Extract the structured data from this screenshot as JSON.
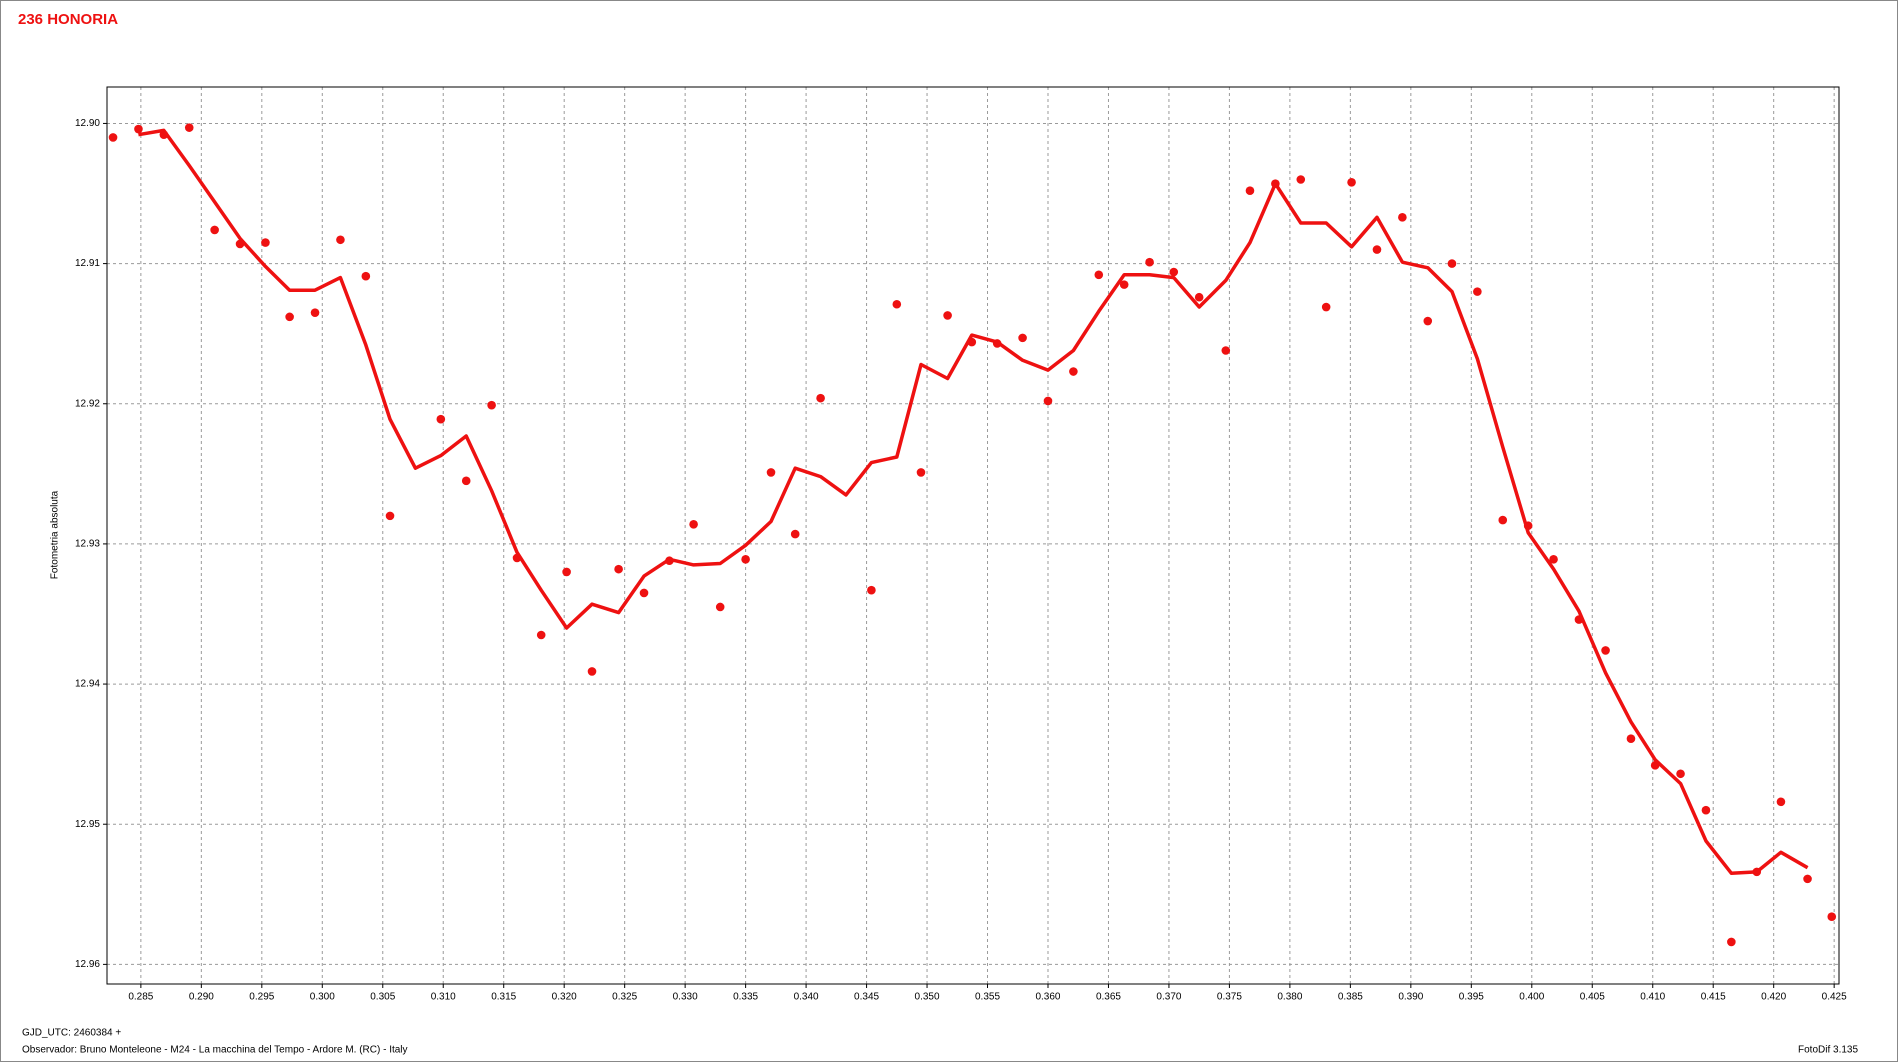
{
  "chart_data": {
    "type": "scatter",
    "title": "236 HONORIA",
    "y_label": "Fotometria absoluta",
    "footer_left": [
      "GJD_UTC: 2460384 +",
      "Observador: Bruno Monteleone - M24 - La macchina del Tempo - Ardore M. (RC) - Italy"
    ],
    "footer_right": "FotoDif 3.135",
    "xlim": [
      0.2822,
      0.4254
    ],
    "ylim": [
      12.8974,
      12.9614
    ],
    "y_inverted": true,
    "grid": true,
    "xticks": [
      0.285,
      {
        "value": 0.29,
        "label": "0.290"
      },
      0.295,
      {
        "value": 0.3,
        "label": "0.300"
      },
      0.305,
      {
        "value": 0.31,
        "label": "0.310"
      },
      0.315,
      {
        "value": 0.32,
        "label": "0.320"
      },
      0.325,
      {
        "value": 0.33,
        "label": "0.330"
      },
      0.335,
      {
        "value": 0.34,
        "label": "0.340"
      },
      0.345,
      {
        "value": 0.35,
        "label": "0.350"
      },
      0.355,
      {
        "value": 0.36,
        "label": "0.360"
      },
      0.365,
      {
        "value": 0.37,
        "label": "0.370"
      },
      0.375,
      {
        "value": 0.38,
        "label": "0.380"
      },
      0.385,
      {
        "value": 0.39,
        "label": "0.390"
      },
      0.395,
      {
        "value": 0.4,
        "label": "0.400"
      },
      0.405,
      {
        "value": 0.41,
        "label": "0.410"
      },
      0.415,
      {
        "value": 0.42,
        "label": "0.420"
      },
      0.425
    ],
    "yticks": [
      {
        "value": 12.9,
        "label": "12.90"
      },
      12.91,
      12.92,
      12.93,
      12.94,
      12.95,
      12.96
    ],
    "series": [
      {
        "style": "markers",
        "color": "#ee1111",
        "x": [
          0.2827,
          0.2848,
          0.2869,
          0.289,
          0.2911,
          0.2932,
          0.2953,
          0.2973,
          0.2994,
          0.3015,
          0.3036,
          0.3056,
          0.3098,
          0.3119,
          0.314,
          0.3161,
          0.3181,
          0.3202,
          0.3223,
          0.3245,
          0.3266,
          0.3287,
          0.3307,
          0.3329,
          0.335,
          0.3371,
          0.3391,
          0.3412,
          0.3454,
          0.3475,
          0.3495,
          0.3517,
          0.3537,
          0.3558,
          0.3579,
          0.36,
          0.3621,
          0.3642,
          0.3663,
          0.3684,
          0.3704,
          0.3725,
          0.3747,
          0.3767,
          0.3788,
          0.3809,
          0.383,
          0.3851,
          0.3872,
          0.3893,
          0.3914,
          0.3934,
          0.3955,
          0.3976,
          0.3997,
          0.4018,
          0.4039,
          0.4061,
          0.4082,
          0.4102,
          0.4123,
          0.4144,
          0.4165,
          0.4186,
          0.4206,
          0.4228,
          0.4248
        ],
        "values": [
          12.901,
          12.9004,
          12.9008,
          12.9003,
          12.9076,
          12.9086,
          12.9085,
          12.9138,
          12.9135,
          12.9083,
          12.9109,
          12.928,
          12.9211,
          12.9255,
          12.9201,
          12.931,
          12.9365,
          12.932,
          12.9391,
          12.9318,
          12.9335,
          12.9312,
          12.9286,
          12.9345,
          12.9311,
          12.9249,
          12.9293,
          12.9196,
          12.9333,
          12.9129,
          12.9249,
          12.9137,
          12.9156,
          12.9157,
          12.9153,
          12.9198,
          12.9177,
          12.9108,
          12.9115,
          12.9099,
          12.9106,
          12.9124,
          12.9162,
          12.9048,
          12.9043,
          12.904,
          12.9131,
          12.9042,
          12.909,
          12.9067,
          12.9141,
          12.91,
          12.912,
          12.9283,
          12.9287,
          12.9311,
          12.9354,
          12.9376,
          12.9439,
          12.9458,
          12.9464,
          12.949,
          12.9584,
          12.9534,
          12.9484,
          12.9539,
          12.9566
        ]
      },
      {
        "style": "line",
        "color": "#ee1111",
        "x": [
          0.2848,
          0.2869,
          0.289,
          0.2911,
          0.2932,
          0.2953,
          0.2973,
          0.2994,
          0.3015,
          0.3036,
          0.3056,
          0.3077,
          0.3098,
          0.3119,
          0.314,
          0.3161,
          0.3181,
          0.3202,
          0.3223,
          0.3245,
          0.3266,
          0.3287,
          0.3307,
          0.3329,
          0.335,
          0.3371,
          0.3391,
          0.3412,
          0.3433,
          0.3454,
          0.3475,
          0.3495,
          0.3517,
          0.3537,
          0.3558,
          0.3579,
          0.36,
          0.3621,
          0.3642,
          0.3663,
          0.3684,
          0.3704,
          0.3725,
          0.3747,
          0.3767,
          0.3788,
          0.3809,
          0.383,
          0.3851,
          0.3872,
          0.3893,
          0.3914,
          0.3934,
          0.3955,
          0.3976,
          0.3997,
          0.4018,
          0.4039,
          0.4061,
          0.4082,
          0.4102,
          0.4123,
          0.4144,
          0.4165,
          0.4186,
          0.4206,
          0.4228
        ],
        "values": [
          12.9008,
          12.9005,
          12.903,
          12.9056,
          12.9082,
          12.9102,
          12.9119,
          12.9119,
          12.911,
          12.9158,
          12.9211,
          12.9246,
          12.9237,
          12.9223,
          12.9262,
          12.9306,
          12.9333,
          12.936,
          12.9343,
          12.9349,
          12.9323,
          12.9311,
          12.9315,
          12.9314,
          12.9301,
          12.9284,
          12.9246,
          12.9252,
          12.9265,
          12.9242,
          12.9238,
          12.9172,
          12.9182,
          12.9151,
          12.9156,
          12.9169,
          12.9176,
          12.9162,
          12.9134,
          12.9108,
          12.9108,
          12.911,
          12.9131,
          12.9112,
          12.9085,
          12.9043,
          12.9071,
          12.9071,
          12.9088,
          12.9067,
          12.9099,
          12.9103,
          12.912,
          12.9168,
          12.9231,
          12.9292,
          12.9318,
          12.9348,
          12.9392,
          12.9427,
          12.9454,
          12.9471,
          12.9512,
          12.9535,
          12.9534,
          12.952,
          12.9531
        ]
      }
    ]
  }
}
